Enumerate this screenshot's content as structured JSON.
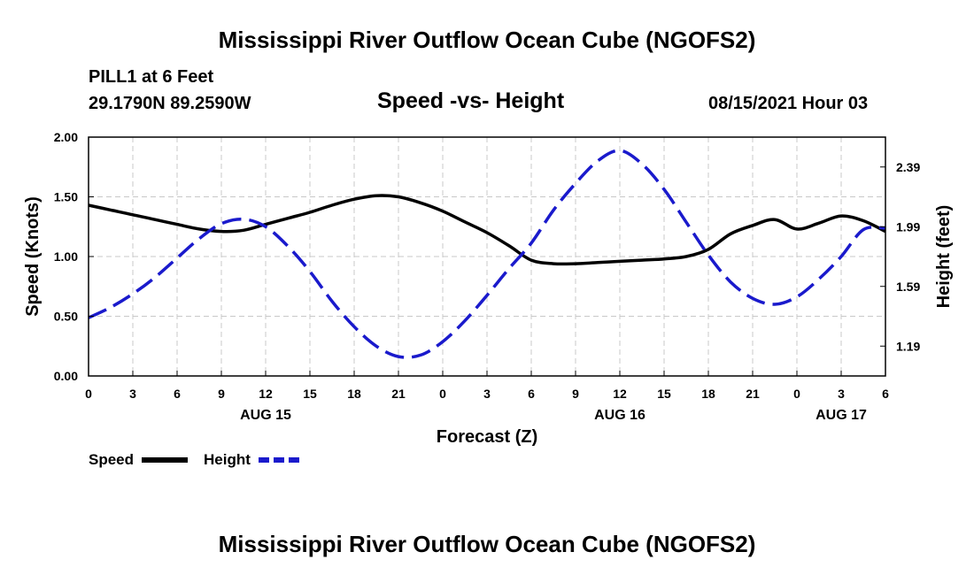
{
  "page": {
    "title": "Mississippi River Outflow Ocean Cube (NGOFS2)",
    "footer_title": "Mississippi River Outflow Ocean Cube (NGOFS2)",
    "station": "PILL1 at 6 Feet",
    "coords": "29.1790N  89.2590W",
    "datetime": "08/15/2021 Hour 03"
  },
  "chart_data": {
    "type": "line",
    "title": "Speed -vs- Height",
    "xlabel": "Forecast (Z)",
    "ylabel": "Speed (Knots)",
    "y2label": "Height (feet)",
    "x_hours": [
      0,
      1.5,
      3,
      4.5,
      6,
      7.5,
      9,
      10.5,
      12,
      13.5,
      15,
      16.5,
      18,
      19.5,
      21,
      22.5,
      24,
      25.5,
      27,
      28.5,
      30,
      31.5,
      33,
      34.5,
      36,
      37.5,
      39,
      40.5,
      42,
      43.5,
      45,
      46.5,
      48,
      49.5,
      51,
      52.5,
      54
    ],
    "x_ticks": [
      0,
      3,
      6,
      9,
      12,
      15,
      18,
      21,
      24,
      27,
      30,
      33,
      36,
      39,
      42,
      45,
      48,
      51,
      54
    ],
    "x_tick_labels": [
      "0",
      "3",
      "6",
      "9",
      "12",
      "15",
      "18",
      "21",
      "0",
      "3",
      "6",
      "9",
      "12",
      "15",
      "18",
      "21",
      "0",
      "3",
      "6"
    ],
    "day_labels": [
      {
        "hour": 12,
        "label": "AUG 15"
      },
      {
        "hour": 36,
        "label": "AUG 16"
      },
      {
        "hour": 51,
        "label": "AUG 17"
      }
    ],
    "ylim": [
      0,
      2.0
    ],
    "y_ticks": [
      0,
      0.5,
      1.0,
      1.5,
      2.0
    ],
    "y_tick_labels": [
      "0.00",
      "0.50",
      "1.00",
      "1.50",
      "2.00"
    ],
    "y2lim": [
      0.99,
      2.59
    ],
    "y2_ticks": [
      1.19,
      1.59,
      1.99,
      2.39
    ],
    "y2_tick_labels": [
      "1.19",
      "1.59",
      "1.99",
      "2.39"
    ],
    "grid": true,
    "series": [
      {
        "name": "Speed",
        "axis": "left",
        "color": "#000000",
        "style": "solid",
        "values": [
          1.43,
          1.39,
          1.35,
          1.31,
          1.27,
          1.23,
          1.21,
          1.22,
          1.27,
          1.32,
          1.37,
          1.43,
          1.48,
          1.51,
          1.5,
          1.45,
          1.38,
          1.29,
          1.2,
          1.09,
          0.97,
          0.94,
          0.94,
          0.95,
          0.96,
          0.97,
          0.98,
          1.0,
          1.06,
          1.19,
          1.26,
          1.31,
          1.23,
          1.28,
          1.34,
          1.3,
          1.21
        ]
      },
      {
        "name": "Height",
        "axis": "right",
        "color": "#1a1acc",
        "style": "dashed",
        "values": [
          1.38,
          1.45,
          1.54,
          1.65,
          1.78,
          1.91,
          2.01,
          2.04,
          1.99,
          1.86,
          1.69,
          1.49,
          1.32,
          1.19,
          1.12,
          1.13,
          1.22,
          1.36,
          1.53,
          1.71,
          1.88,
          2.1,
          2.28,
          2.43,
          2.5,
          2.41,
          2.24,
          2.02,
          1.8,
          1.62,
          1.51,
          1.47,
          1.52,
          1.64,
          1.79,
          1.97,
          1.98
        ]
      }
    ],
    "legend": {
      "placement": "bottom-left",
      "items": [
        {
          "label": "Speed",
          "color": "#000000",
          "style": "solid"
        },
        {
          "label": "Height",
          "color": "#1a1acc",
          "style": "dashed"
        }
      ]
    }
  }
}
